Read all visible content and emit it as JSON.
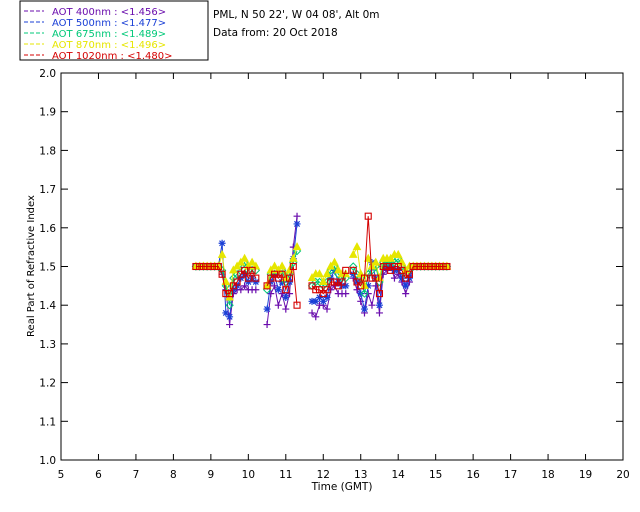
{
  "header": {
    "site_line": "PML, N 50 22', W 04 08', Alt 0m",
    "date_line": "Data from: 20 Oct 2018"
  },
  "legend": {
    "entries": [
      {
        "label": "AOT  400nm : <1.456>",
        "color": "#6a0dad",
        "marker": "plus"
      },
      {
        "label": "AOT  500nm : <1.477>",
        "color": "#1a3fd6",
        "marker": "asterisk"
      },
      {
        "label": "AOT  675nm : <1.489>",
        "color": "#00c878",
        "marker": "diamond"
      },
      {
        "label": "AOT  870nm : <1.496>",
        "color": "#e6e600",
        "marker": "triangle"
      },
      {
        "label": "AOT 1020nm : <1.480>",
        "color": "#d40000",
        "marker": "square"
      }
    ]
  },
  "chart_data": {
    "type": "line",
    "xlabel": "Time (GMT)",
    "ylabel": "Real Part of Refractive Index",
    "xlim": [
      5,
      20
    ],
    "ylim": [
      1.0,
      2.0
    ],
    "xticks": [
      "5",
      "6",
      "7",
      "8",
      "9",
      "10",
      "11",
      "12",
      "13",
      "14",
      "15",
      "16",
      "17",
      "18",
      "19",
      "20"
    ],
    "yticks": [
      "1.0",
      "1.1",
      "1.2",
      "1.3",
      "1.4",
      "1.5",
      "1.6",
      "1.7",
      "1.8",
      "1.9",
      "2.0"
    ],
    "grid": false,
    "legend_position": "top-left",
    "series": [
      {
        "name": "AOT  400nm : <1.456>",
        "color": "#6a0dad",
        "marker": "plus",
        "segments": [
          {
            "x": [
              8.6,
              8.7,
              8.8,
              8.9,
              9.0,
              9.1,
              9.2,
              9.3,
              9.4,
              9.5,
              9.6,
              9.7,
              9.8,
              9.9,
              10.0,
              10.1,
              10.2
            ],
            "y": [
              1.5,
              1.5,
              1.5,
              1.5,
              1.5,
              1.5,
              1.5,
              1.48,
              1.44,
              1.35,
              1.43,
              1.44,
              1.44,
              1.45,
              1.44,
              1.44,
              1.44
            ]
          },
          {
            "x": [
              10.5,
              10.6,
              10.7,
              10.8,
              10.9,
              11.0,
              11.1,
              11.2,
              11.3
            ],
            "y": [
              1.35,
              1.43,
              1.45,
              1.4,
              1.43,
              1.39,
              1.43,
              1.55,
              1.63
            ]
          },
          {
            "x": [
              11.7,
              11.8,
              11.9,
              12.0,
              12.1,
              12.2,
              12.3,
              12.4,
              12.5,
              12.6
            ],
            "y": [
              1.38,
              1.37,
              1.4,
              1.4,
              1.39,
              1.44,
              1.45,
              1.43,
              1.43,
              1.43
            ]
          },
          {
            "x": [
              12.8,
              12.9,
              13.0,
              13.1,
              13.2,
              13.3,
              13.4,
              13.5,
              13.6,
              13.7,
              13.8,
              13.9,
              14.0,
              14.1,
              14.2,
              14.3,
              14.4,
              14.5,
              14.6,
              14.7,
              14.8,
              14.9,
              15.0,
              15.1,
              15.2,
              15.3
            ],
            "y": [
              1.47,
              1.44,
              1.41,
              1.38,
              1.43,
              1.4,
              1.45,
              1.38,
              1.48,
              1.49,
              1.5,
              1.47,
              1.48,
              1.46,
              1.43,
              1.46,
              1.5,
              1.5,
              1.5,
              1.5,
              1.5,
              1.5,
              1.5,
              1.5,
              1.5,
              1.5
            ]
          }
        ]
      },
      {
        "name": "AOT  500nm : <1.477>",
        "color": "#1a3fd6",
        "marker": "asterisk",
        "segments": [
          {
            "x": [
              8.6,
              8.7,
              8.8,
              8.9,
              9.0,
              9.1,
              9.2,
              9.3,
              9.4,
              9.5,
              9.6,
              9.7,
              9.8,
              9.9,
              10.0,
              10.1,
              10.2
            ],
            "y": [
              1.5,
              1.5,
              1.5,
              1.5,
              1.5,
              1.5,
              1.5,
              1.56,
              1.38,
              1.37,
              1.44,
              1.45,
              1.47,
              1.48,
              1.46,
              1.47,
              1.46
            ]
          },
          {
            "x": [
              10.5,
              10.6,
              10.7,
              10.8,
              10.9,
              11.0,
              11.1,
              11.2,
              11.3
            ],
            "y": [
              1.39,
              1.46,
              1.48,
              1.44,
              1.46,
              1.42,
              1.46,
              1.52,
              1.61
            ]
          },
          {
            "x": [
              11.7,
              11.8,
              11.9,
              12.0,
              12.1,
              12.2,
              12.3,
              12.4,
              12.5,
              12.6
            ],
            "y": [
              1.41,
              1.41,
              1.42,
              1.41,
              1.42,
              1.47,
              1.49,
              1.46,
              1.45,
              1.45
            ]
          },
          {
            "x": [
              12.8,
              12.9,
              13.0,
              13.1,
              13.2,
              13.3,
              13.4,
              13.5,
              13.6,
              13.7,
              13.8,
              13.9,
              14.0,
              14.1,
              14.2,
              14.3,
              14.4,
              14.5,
              14.6,
              14.7,
              14.8,
              14.9,
              15.0,
              15.1,
              15.2,
              15.3
            ],
            "y": [
              1.48,
              1.46,
              1.43,
              1.39,
              1.45,
              1.51,
              1.47,
              1.4,
              1.5,
              1.5,
              1.5,
              1.49,
              1.49,
              1.47,
              1.45,
              1.47,
              1.5,
              1.5,
              1.5,
              1.5,
              1.5,
              1.5,
              1.5,
              1.5,
              1.5,
              1.5
            ]
          }
        ]
      },
      {
        "name": "AOT  675nm : <1.489>",
        "color": "#00c878",
        "marker": "diamond",
        "segments": [
          {
            "x": [
              8.6,
              8.7,
              8.8,
              8.9,
              9.0,
              9.1,
              9.2,
              9.3,
              9.4,
              9.5,
              9.6,
              9.7,
              9.8,
              9.9,
              10.0,
              10.1,
              10.2
            ],
            "y": [
              1.5,
              1.5,
              1.5,
              1.5,
              1.5,
              1.5,
              1.5,
              1.49,
              1.45,
              1.4,
              1.47,
              1.48,
              1.5,
              1.51,
              1.49,
              1.5,
              1.49
            ]
          },
          {
            "x": [
              10.5,
              10.6,
              10.7,
              10.8,
              10.9,
              11.0,
              11.1,
              11.2,
              11.3
            ],
            "y": [
              1.44,
              1.48,
              1.49,
              1.48,
              1.49,
              1.46,
              1.48,
              1.51,
              1.54
            ]
          },
          {
            "x": [
              11.7,
              11.8,
              11.9,
              12.0,
              12.1,
              12.2,
              12.3,
              12.4,
              12.5,
              12.6
            ],
            "y": [
              1.45,
              1.46,
              1.46,
              1.45,
              1.46,
              1.49,
              1.5,
              1.48,
              1.47,
              1.47
            ]
          },
          {
            "x": [
              12.8,
              12.9,
              13.0,
              13.1,
              13.2,
              13.3,
              13.4,
              13.5,
              13.6,
              13.7,
              13.8,
              13.9,
              14.0,
              14.1,
              14.2,
              14.3,
              14.4,
              14.5,
              14.6,
              14.7,
              14.8,
              14.9,
              15.0,
              15.1,
              15.2,
              15.3
            ],
            "y": [
              1.5,
              1.48,
              1.47,
              1.43,
              1.48,
              1.49,
              1.5,
              1.46,
              1.51,
              1.51,
              1.51,
              1.51,
              1.52,
              1.5,
              1.48,
              1.49,
              1.5,
              1.5,
              1.5,
              1.5,
              1.5,
              1.5,
              1.5,
              1.5,
              1.5,
              1.5
            ]
          }
        ]
      },
      {
        "name": "AOT  870nm : <1.496>",
        "color": "#e6e600",
        "marker": "triangle",
        "segments": [
          {
            "x": [
              8.6,
              8.7,
              8.8,
              8.9,
              9.0,
              9.1,
              9.2,
              9.3,
              9.4,
              9.5,
              9.6,
              9.7,
              9.8,
              9.9,
              10.0,
              10.1,
              10.2
            ],
            "y": [
              1.5,
              1.5,
              1.5,
              1.5,
              1.5,
              1.5,
              1.5,
              1.53,
              1.46,
              1.42,
              1.49,
              1.5,
              1.51,
              1.52,
              1.5,
              1.51,
              1.5
            ]
          },
          {
            "x": [
              10.5,
              10.6,
              10.7,
              10.8,
              10.9,
              11.0,
              11.1,
              11.2,
              11.3
            ],
            "y": [
              1.45,
              1.49,
              1.5,
              1.49,
              1.5,
              1.47,
              1.49,
              1.52,
              1.55
            ]
          },
          {
            "x": [
              11.7,
              11.8,
              11.9,
              12.0,
              12.1,
              12.2,
              12.3,
              12.4,
              12.5,
              12.6
            ],
            "y": [
              1.47,
              1.48,
              1.48,
              1.46,
              1.48,
              1.5,
              1.51,
              1.49,
              1.48,
              1.48
            ]
          },
          {
            "x": [
              12.8,
              12.9,
              13.0,
              13.1,
              13.2,
              13.3,
              13.4,
              13.5,
              13.6,
              13.7,
              13.8,
              13.9,
              14.0,
              14.1,
              14.2,
              14.3,
              14.4,
              14.5,
              14.6,
              14.7,
              14.8,
              14.9,
              15.0,
              15.1,
              15.2,
              15.3
            ],
            "y": [
              1.53,
              1.55,
              1.48,
              1.45,
              1.52,
              1.5,
              1.51,
              1.47,
              1.52,
              1.52,
              1.52,
              1.53,
              1.53,
              1.51,
              1.49,
              1.5,
              1.5,
              1.5,
              1.5,
              1.5,
              1.5,
              1.5,
              1.5,
              1.5,
              1.5,
              1.5
            ]
          }
        ]
      },
      {
        "name": "AOT 1020nm : <1.480>",
        "color": "#d40000",
        "marker": "square",
        "segments": [
          {
            "x": [
              8.6,
              8.7,
              8.8,
              8.9,
              9.0,
              9.1,
              9.2,
              9.3,
              9.4,
              9.5,
              9.6,
              9.7,
              9.8,
              9.9,
              10.0,
              10.1,
              10.2
            ],
            "y": [
              1.5,
              1.5,
              1.5,
              1.5,
              1.5,
              1.5,
              1.5,
              1.48,
              1.43,
              1.43,
              1.45,
              1.46,
              1.48,
              1.49,
              1.47,
              1.49,
              1.47
            ]
          },
          {
            "x": [
              10.5,
              10.6,
              10.7,
              10.8,
              10.9,
              11.0,
              11.1,
              11.2,
              11.3
            ],
            "y": [
              1.45,
              1.47,
              1.48,
              1.47,
              1.48,
              1.44,
              1.47,
              1.5,
              1.4
            ]
          },
          {
            "x": [
              11.7,
              11.8,
              11.9,
              12.0,
              12.1,
              12.2,
              12.3,
              12.4,
              12.5,
              12.6
            ],
            "y": [
              1.45,
              1.44,
              1.44,
              1.43,
              1.44,
              1.46,
              1.46,
              1.45,
              1.46,
              1.49
            ]
          },
          {
            "x": [
              12.8,
              12.9,
              13.0,
              13.1,
              13.2,
              13.3,
              13.4,
              13.5,
              13.6,
              13.7,
              13.8,
              13.9,
              14.0,
              14.1,
              14.2,
              14.3,
              14.4,
              14.5,
              14.6,
              14.7,
              14.8,
              14.9,
              15.0,
              15.1,
              15.2,
              15.3
            ],
            "y": [
              1.49,
              1.46,
              1.45,
              1.47,
              1.63,
              1.47,
              1.47,
              1.43,
              1.5,
              1.5,
              1.49,
              1.5,
              1.5,
              1.49,
              1.47,
              1.48,
              1.5,
              1.5,
              1.5,
              1.5,
              1.5,
              1.5,
              1.5,
              1.5,
              1.5,
              1.5
            ]
          }
        ]
      }
    ]
  }
}
